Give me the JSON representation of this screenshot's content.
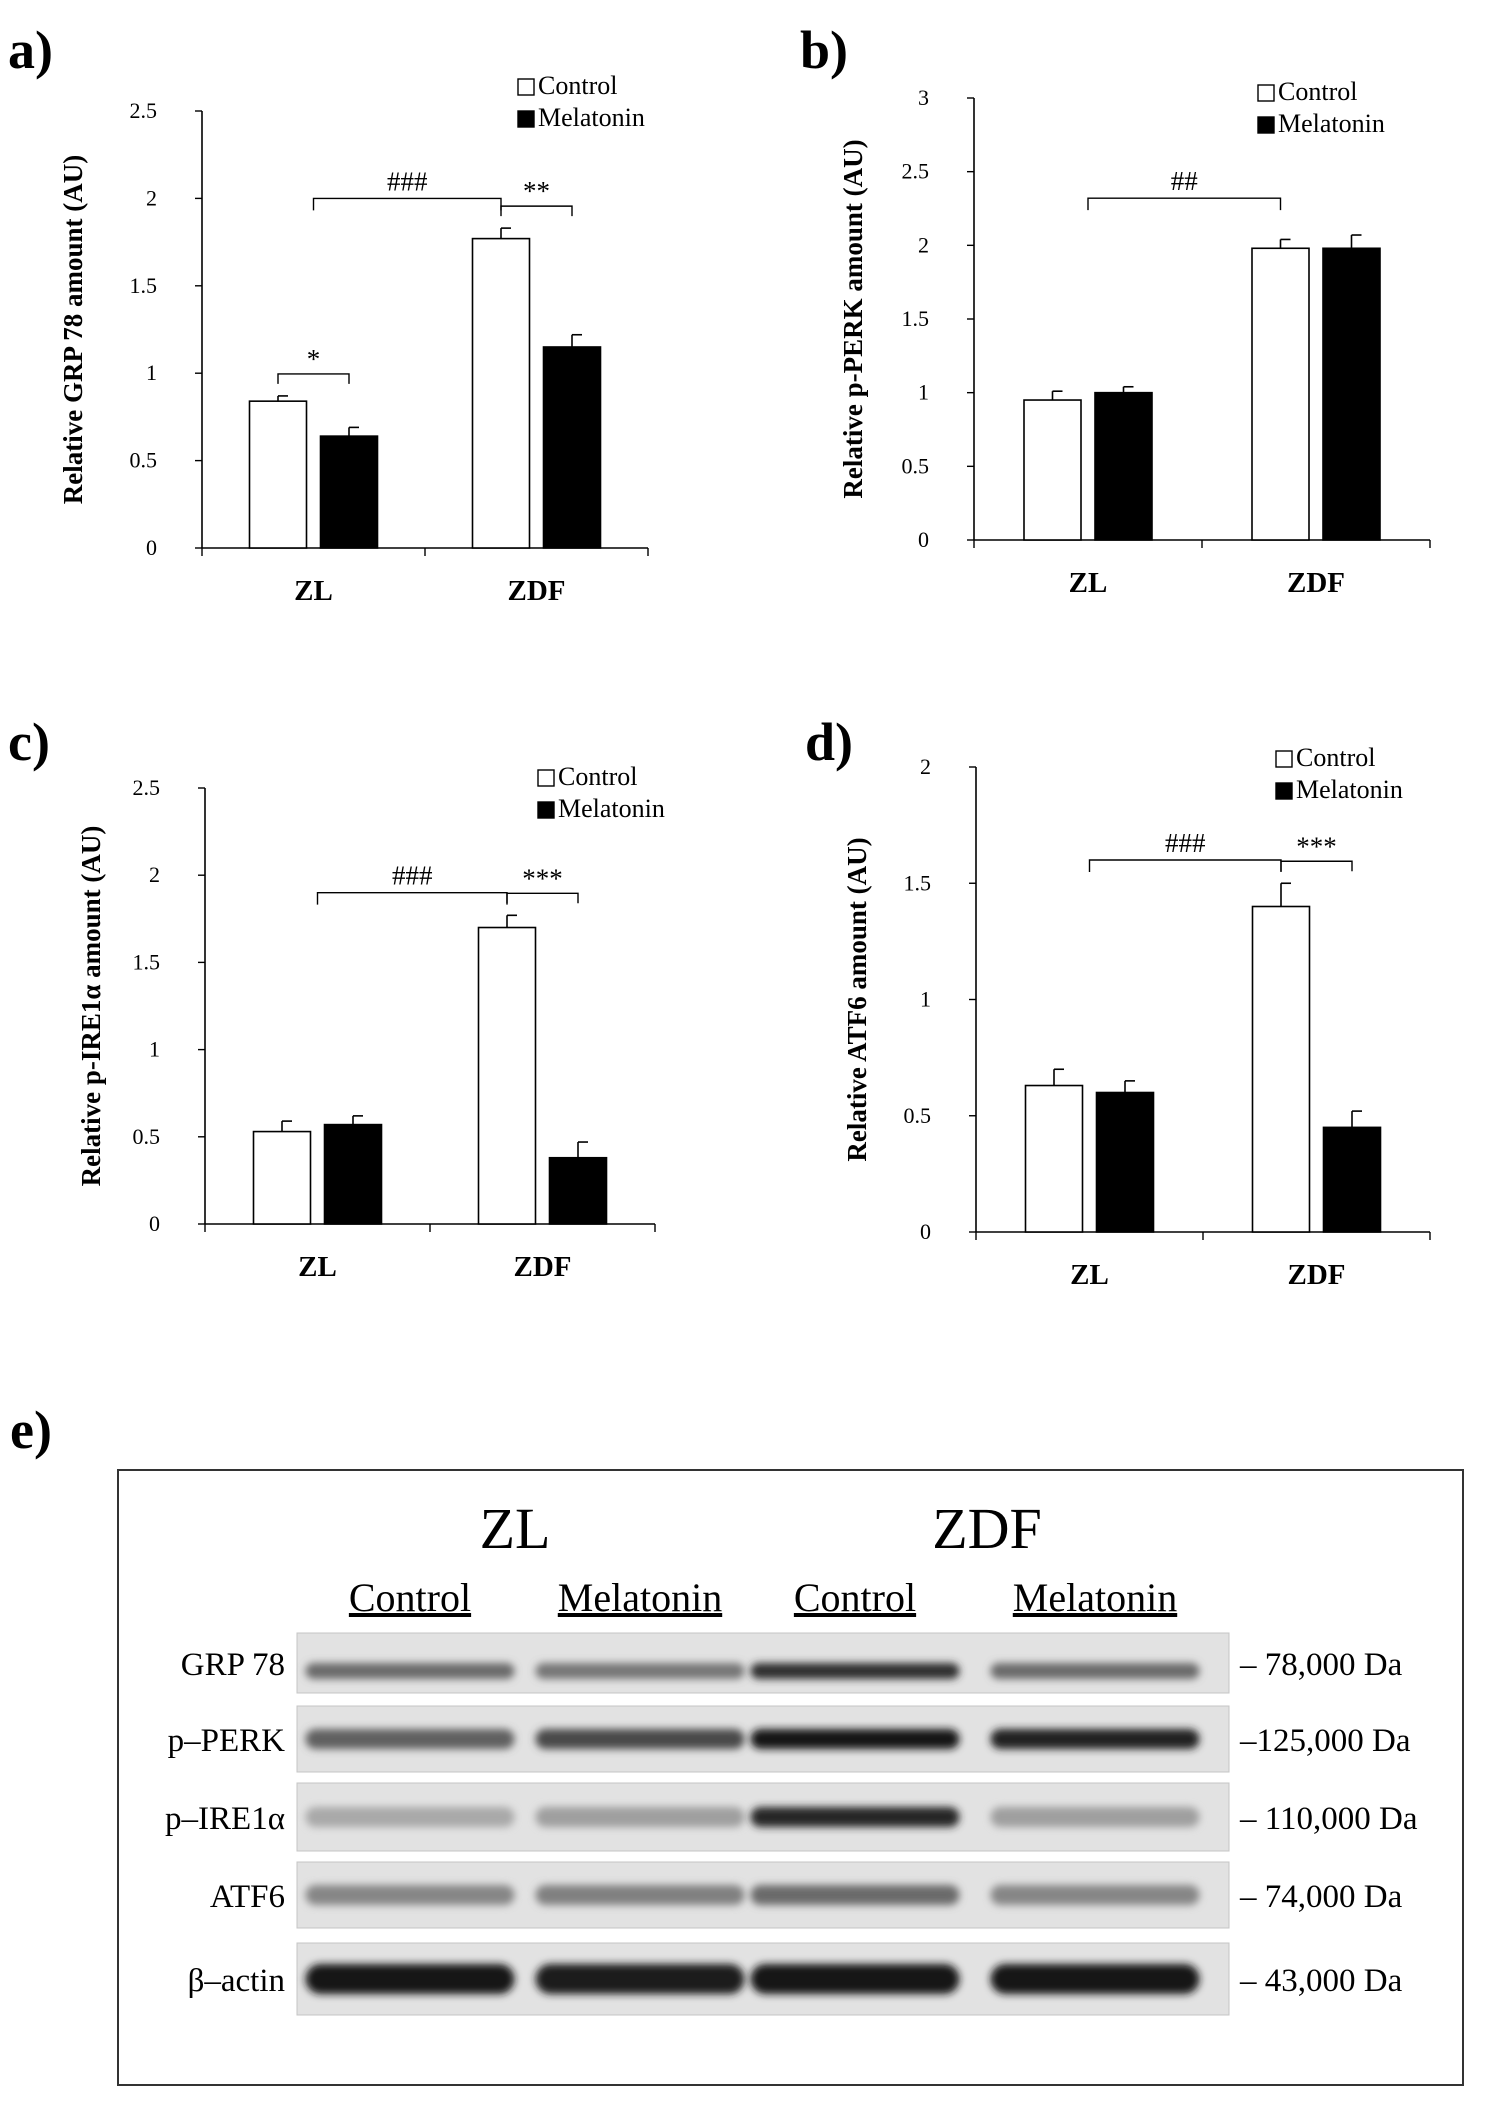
{
  "chart_data": [
    {
      "id": "a",
      "type": "bar",
      "panel_label": "a)",
      "ylabel": "Relative GRP 78 amount (AU)",
      "ylim": [
        0,
        2.5
      ],
      "yticks": [
        "0",
        "0.5",
        "1",
        "1.5",
        "2",
        "2.5"
      ],
      "categories": [
        "ZL",
        "ZDF"
      ],
      "series": [
        {
          "name": "Control",
          "color": "#ffffff",
          "values": [
            0.84,
            1.77
          ],
          "errors": [
            0.03,
            0.06
          ]
        },
        {
          "name": "Melatonin",
          "color": "#000000",
          "values": [
            0.64,
            1.15
          ],
          "errors": [
            0.05,
            0.07
          ]
        }
      ],
      "legend": "top-right",
      "annotations": [
        {
          "text": "*",
          "type": "within",
          "category": 0
        },
        {
          "text": "**",
          "type": "within",
          "category": 1
        },
        {
          "text": "###",
          "type": "between",
          "from": 0,
          "to": 1,
          "level": 2.0
        }
      ]
    },
    {
      "id": "b",
      "type": "bar",
      "panel_label": "b)",
      "ylabel": "Relative p-PERK amount (AU)",
      "ylim": [
        0,
        3
      ],
      "yticks": [
        "0",
        "0.5",
        "1",
        "1.5",
        "2",
        "2.5",
        "3"
      ],
      "categories": [
        "ZL",
        "ZDF"
      ],
      "series": [
        {
          "name": "Control",
          "color": "#ffffff",
          "values": [
            0.95,
            1.98
          ],
          "errors": [
            0.06,
            0.06
          ]
        },
        {
          "name": "Melatonin",
          "color": "#000000",
          "values": [
            1.0,
            1.98
          ],
          "errors": [
            0.04,
            0.09
          ]
        }
      ],
      "legend": "top-right",
      "annotations": [
        {
          "text": "##",
          "type": "between",
          "from": 0,
          "to": 1,
          "level": 2.32
        }
      ]
    },
    {
      "id": "c",
      "type": "bar",
      "panel_label": "c)",
      "ylabel": "Relative p-IRE1α amount (AU)",
      "ylim": [
        0,
        2.5
      ],
      "yticks": [
        "0",
        "0.5",
        "1",
        "1.5",
        "2",
        "2.5"
      ],
      "categories": [
        "ZL",
        "ZDF"
      ],
      "series": [
        {
          "name": "Control",
          "color": "#ffffff",
          "values": [
            0.53,
            1.7
          ],
          "errors": [
            0.06,
            0.07
          ]
        },
        {
          "name": "Melatonin",
          "color": "#000000",
          "values": [
            0.57,
            0.38
          ],
          "errors": [
            0.05,
            0.09
          ]
        }
      ],
      "legend": "top-right",
      "annotations": [
        {
          "text": "***",
          "type": "within",
          "category": 1
        },
        {
          "text": "###",
          "type": "between",
          "from": 0,
          "to": 1,
          "level": 1.9
        }
      ]
    },
    {
      "id": "d",
      "type": "bar",
      "panel_label": "d)",
      "ylabel": "Relative ATF6 amount (AU)",
      "ylim": [
        0,
        2
      ],
      "yticks": [
        "0",
        "0.5",
        "1",
        "1.5",
        "2"
      ],
      "categories": [
        "ZL",
        "ZDF"
      ],
      "series": [
        {
          "name": "Control",
          "color": "#ffffff",
          "values": [
            0.63,
            1.4
          ],
          "errors": [
            0.07,
            0.1
          ]
        },
        {
          "name": "Melatonin",
          "color": "#000000",
          "values": [
            0.6,
            0.45
          ],
          "errors": [
            0.05,
            0.07
          ]
        }
      ],
      "legend": "top-right",
      "annotations": [
        {
          "text": "***",
          "type": "within",
          "category": 1
        },
        {
          "text": "###",
          "type": "between",
          "from": 0,
          "to": 1,
          "level": 1.6
        }
      ]
    }
  ],
  "blot": {
    "panel_label": "e)",
    "groups": [
      "ZL",
      "ZDF"
    ],
    "conditions": [
      "Control",
      "Melatonin",
      "Control",
      "Melatonin"
    ],
    "rows": [
      {
        "label": "GRP 78",
        "size": "– 78,000 Da",
        "intensity": [
          0.55,
          0.5,
          0.85,
          0.55
        ]
      },
      {
        "label": "p–PERK",
        "size": "–125,000 Da",
        "intensity": [
          0.6,
          0.72,
          0.95,
          0.9
        ]
      },
      {
        "label": "p–IRE1α",
        "size": "– 110,000 Da",
        "intensity": [
          0.25,
          0.3,
          0.88,
          0.3
        ]
      },
      {
        "label": "ATF6",
        "size": "– 74,000 Da",
        "intensity": [
          0.42,
          0.45,
          0.55,
          0.42
        ]
      },
      {
        "label": "β–actin",
        "size": "– 43,000 Da",
        "intensity": [
          0.95,
          0.92,
          0.97,
          0.95
        ]
      }
    ]
  }
}
